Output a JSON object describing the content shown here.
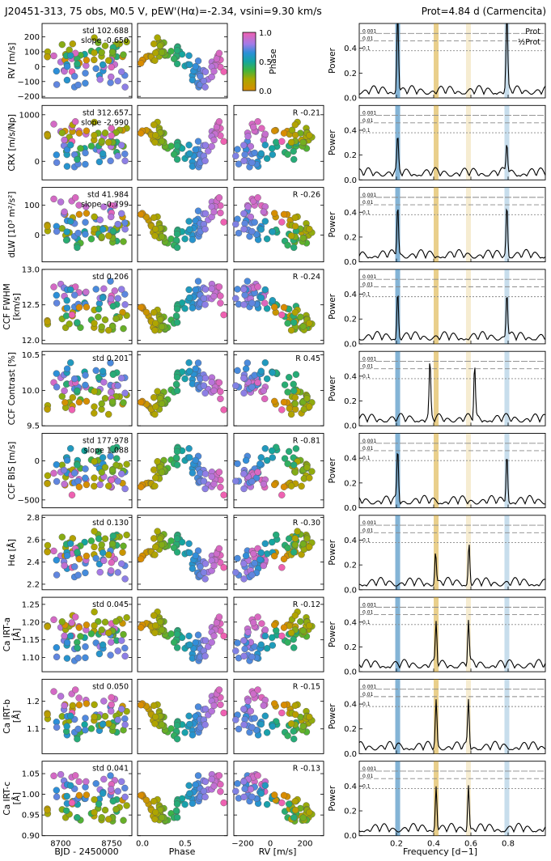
{
  "header": {
    "title": "J20451-313, 75 obs, M0.5 V, pEW'(Hα)=-2.34, vsini=9.30 km/s",
    "prot_label": "Prot=4.84 d (Carmencita)"
  },
  "colorbar": {
    "label": "Phase",
    "ticks": [
      "0.0",
      "0.5",
      "1.0"
    ]
  },
  "legend": {
    "prot": "Prot",
    "half_prot": "½Prot"
  },
  "columns": {
    "time_xlabel": "BJD - 2450000",
    "time_ticks": [
      "8700",
      "8750"
    ],
    "phase_xlabel": "Phase",
    "phase_ticks": [
      "0.0",
      "0.5"
    ],
    "rv_xlabel": "RV [m/s]",
    "rv_ticks": [
      "−200",
      "0",
      "200"
    ],
    "freq_xlabel": "Frequency [d−1]",
    "freq_ticks": [
      "0.2",
      "0.4",
      "0.6",
      "0.8"
    ]
  },
  "power_label": "Power",
  "fap_levels": [
    "0.001",
    "0.01",
    "0.1"
  ],
  "colors": {
    "prot_band": "#1f77b4",
    "half_band": "#d4a017"
  },
  "rows": [
    {
      "ylabel": [
        "RV [m/s]"
      ],
      "ticks": [
        "200",
        "100",
        "0",
        "−100",
        "−200"
      ],
      "stat": "std 102.688",
      "stat2": "slope -0.650",
      "corr": ""
    },
    {
      "ylabel": [
        "CRX [m/s/Np]"
      ],
      "ticks": [
        "1000",
        "0"
      ],
      "stat": "std 312.657",
      "stat2": "slope -2.990",
      "corr": "R -0.21"
    },
    {
      "ylabel": [
        "dLW [10³ m²/s²]"
      ],
      "ticks": [
        "100",
        "0"
      ],
      "stat": "std 41.984",
      "stat2": "slope -0.799",
      "corr": "R -0.26"
    },
    {
      "ylabel": [
        "CCF FWHM",
        "[km/s]"
      ],
      "ticks": [
        "13.0",
        "12.5",
        "12.0"
      ],
      "stat": "std 0.206",
      "stat2": "",
      "corr": "R -0.24"
    },
    {
      "ylabel": [
        "CCF Contrast [%]"
      ],
      "ticks": [
        "10.5",
        "10.0",
        "9.5"
      ],
      "stat": "std 0.201",
      "stat2": "",
      "corr": "R 0.45"
    },
    {
      "ylabel": [
        "CCF BIS [m/s]"
      ],
      "ticks": [
        "0",
        "−500"
      ],
      "stat": "std 177.978",
      "stat2": "slope 1.088",
      "corr": "R -0.81"
    },
    {
      "ylabel": [
        "Hα [Å]"
      ],
      "ticks": [
        "2.8",
        "2.6",
        "2.4",
        "2.2"
      ],
      "stat": "std 0.130",
      "stat2": "",
      "corr": "R -0.30"
    },
    {
      "ylabel": [
        "Ca IRT-a",
        "[Å]"
      ],
      "ticks": [
        "1.25",
        "1.20",
        "1.15",
        "1.10"
      ],
      "stat": "std 0.045",
      "stat2": "",
      "corr": "R -0.12"
    },
    {
      "ylabel": [
        "Ca IRT-b",
        "[Å]"
      ],
      "ticks": [
        "1.2",
        "1.1"
      ],
      "stat": "std 0.050",
      "stat2": "",
      "corr": "R -0.15"
    },
    {
      "ylabel": [
        "Ca IRT-c",
        "[Å]"
      ],
      "ticks": [
        "1.05",
        "1.00",
        "0.95",
        "0.90"
      ],
      "stat": "std 0.041",
      "stat2": "",
      "corr": "R -0.13"
    }
  ],
  "chart_data": {
    "type": "scatter",
    "title": "J20451-313, 75 obs, M0.5 V, pEW'(Hα)=-2.34, vsini=9.30 km/s",
    "n_obs": 75,
    "prot_days": 4.84,
    "time_range": [
      8670,
      8780
    ],
    "phase_range": [
      0,
      1
    ],
    "rv_range": [
      -200,
      300
    ],
    "freq_range": [
      0,
      1
    ],
    "prot_frequency": 0.2066,
    "half_prot_frequency": 0.4132,
    "indicators": [
      {
        "name": "RV",
        "ylim": [
          -210,
          290
        ],
        "std": 102.688,
        "slope": -0.65,
        "periodogram_peaks": [
          [
            0.2066,
            0.73
          ],
          [
            0.7934,
            0.66
          ]
        ]
      },
      {
        "name": "CRX",
        "ylim": [
          -400,
          1200
        ],
        "std": 312.657,
        "slope": -2.99,
        "R": -0.21,
        "periodogram_peaks": [
          [
            0.2066,
            0.27
          ],
          [
            0.7934,
            0.26
          ]
        ]
      },
      {
        "name": "dLW",
        "ylim": [
          -90,
          160
        ],
        "std": 41.984,
        "slope": -0.799,
        "R": -0.26,
        "periodogram_peaks": [
          [
            0.2066,
            0.42
          ],
          [
            0.7934,
            0.42
          ]
        ]
      },
      {
        "name": "CCF FWHM",
        "ylim": [
          11.95,
          13.0
        ],
        "std": 0.206,
        "R": -0.24,
        "periodogram_peaks": [
          [
            0.2066,
            0.38
          ],
          [
            0.7934,
            0.38
          ]
        ]
      },
      {
        "name": "CCF Contrast",
        "ylim": [
          9.5,
          10.55
        ],
        "std": 0.201,
        "R": 0.45,
        "periodogram_peaks": [
          [
            0.38,
            0.45
          ],
          [
            0.62,
            0.43
          ]
        ]
      },
      {
        "name": "CCF BIS",
        "ylim": [
          -600,
          350
        ],
        "std": 177.978,
        "slope": 1.088,
        "R": -0.81,
        "periodogram_peaks": [
          [
            0.2066,
            0.41
          ],
          [
            0.7934,
            0.4
          ]
        ]
      },
      {
        "name": "Halpha",
        "ylim": [
          2.15,
          2.82
        ],
        "std": 0.13,
        "R": -0.3,
        "periodogram_peaks": [
          [
            0.41,
            0.26
          ],
          [
            0.59,
            0.33
          ]
        ]
      },
      {
        "name": "Ca IRT-a",
        "ylim": [
          1.06,
          1.27
        ],
        "std": 0.045,
        "R": -0.12,
        "periodogram_peaks": [
          [
            0.4132,
            0.34
          ],
          [
            0.5868,
            0.35
          ]
        ]
      },
      {
        "name": "Ca IRT-b",
        "ylim": [
          1.01,
          1.28
        ],
        "std": 0.05,
        "R": -0.15,
        "periodogram_peaks": [
          [
            0.4132,
            0.37
          ],
          [
            0.5868,
            0.37
          ]
        ]
      },
      {
        "name": "Ca IRT-c",
        "ylim": [
          0.9,
          1.08
        ],
        "std": 0.041,
        "R": -0.13,
        "periodogram_peaks": [
          [
            0.4132,
            0.36
          ],
          [
            0.5868,
            0.37
          ]
        ]
      }
    ],
    "periodogram_ylim": [
      0,
      0.6
    ],
    "periodogram_yticks": [
      0.0,
      0.2,
      0.4
    ]
  }
}
